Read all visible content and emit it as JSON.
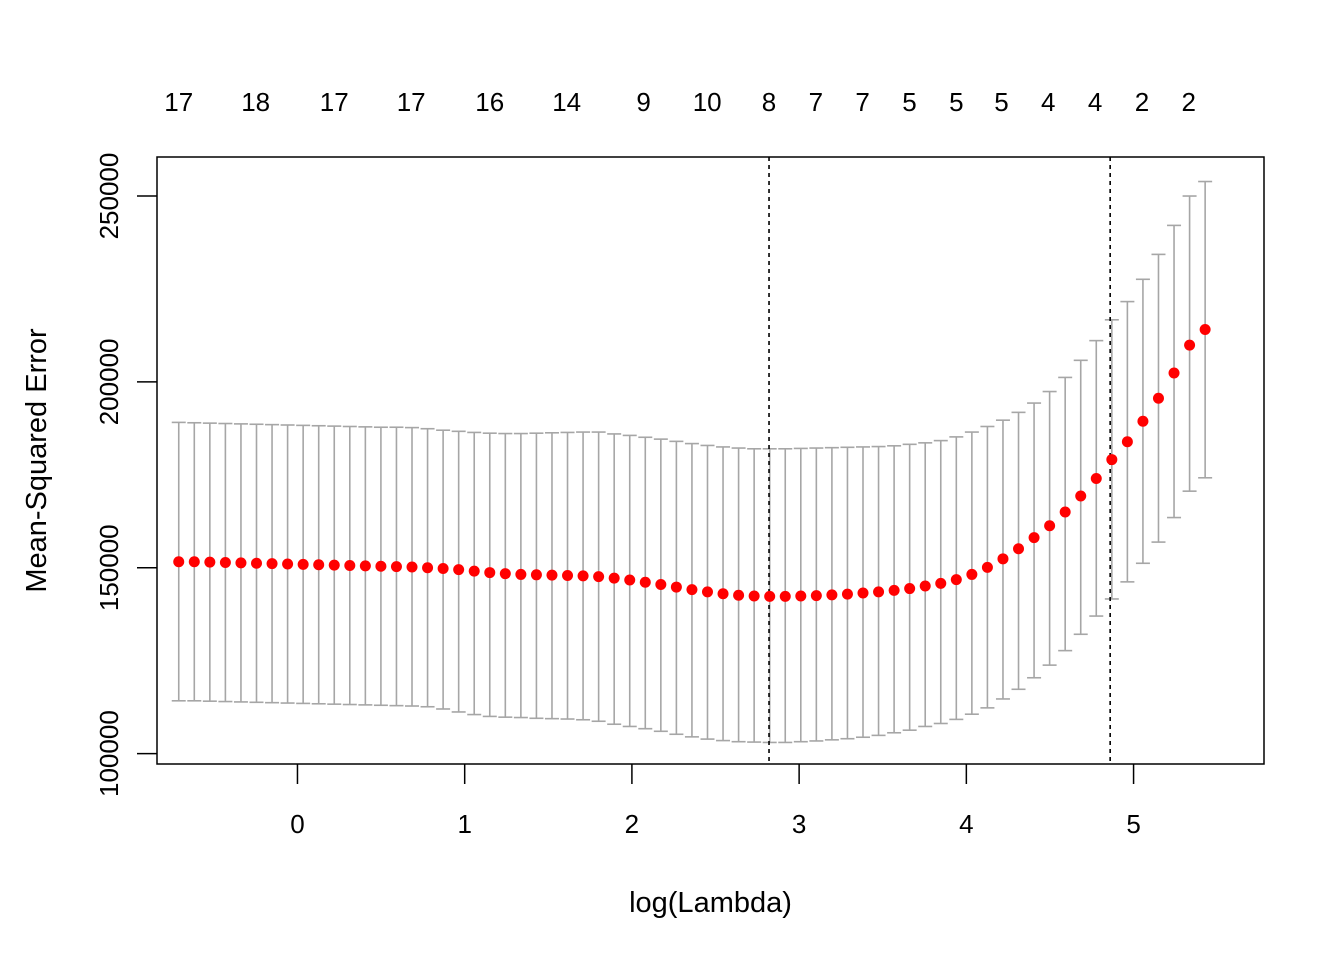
{
  "chart_data": {
    "type": "scatter",
    "xlabel": "log(Lambda)",
    "ylabel": "Mean-Squared Error",
    "xlim": [
      -0.84,
      5.78
    ],
    "ylim": [
      97200,
      260500
    ],
    "x_ticks": [
      0,
      1,
      2,
      3,
      4,
      5
    ],
    "y_ticks": [
      100000,
      150000,
      200000,
      250000
    ],
    "x_tick_labels": [
      "0",
      "1",
      "2",
      "3",
      "4",
      "5"
    ],
    "y_tick_labels": [
      "100000",
      "150000",
      "200000",
      "250000"
    ],
    "top_labels": [
      {
        "x": -0.71,
        "label": "17"
      },
      {
        "x": -0.25,
        "label": "18"
      },
      {
        "x": 0.22,
        "label": "17"
      },
      {
        "x": 0.68,
        "label": "17"
      },
      {
        "x": 1.15,
        "label": "16"
      },
      {
        "x": 1.61,
        "label": "14"
      },
      {
        "x": 2.07,
        "label": "9"
      },
      {
        "x": 2.45,
        "label": "10"
      },
      {
        "x": 2.82,
        "label": "8"
      },
      {
        "x": 3.1,
        "label": "7"
      },
      {
        "x": 3.38,
        "label": "7"
      },
      {
        "x": 3.66,
        "label": "5"
      },
      {
        "x": 3.94,
        "label": "5"
      },
      {
        "x": 4.21,
        "label": "5"
      },
      {
        "x": 4.49,
        "label": "4"
      },
      {
        "x": 4.77,
        "label": "4"
      },
      {
        "x": 5.05,
        "label": "2"
      },
      {
        "x": 5.33,
        "label": "2"
      }
    ],
    "vlines": [
      2.82,
      4.86
    ],
    "x": [
      -0.71,
      -0.617,
      -0.524,
      -0.431,
      -0.338,
      -0.245,
      -0.152,
      -0.059,
      0.034,
      0.127,
      0.22,
      0.313,
      0.406,
      0.499,
      0.592,
      0.685,
      0.778,
      0.871,
      0.964,
      1.057,
      1.15,
      1.243,
      1.336,
      1.429,
      1.522,
      1.615,
      1.708,
      1.801,
      1.894,
      1.987,
      2.08,
      2.173,
      2.266,
      2.359,
      2.452,
      2.545,
      2.638,
      2.731,
      2.824,
      2.917,
      3.01,
      3.103,
      3.196,
      3.289,
      3.382,
      3.475,
      3.568,
      3.661,
      3.754,
      3.847,
      3.94,
      4.033,
      4.126,
      4.219,
      4.312,
      4.405,
      4.498,
      4.591,
      4.684,
      4.777,
      4.87,
      4.963,
      5.056,
      5.149,
      5.242,
      5.335,
      5.428
    ],
    "series": [
      {
        "values": [
          151600,
          151600,
          151500,
          151400,
          151300,
          151200,
          151100,
          151000,
          150900,
          150800,
          150700,
          150600,
          150500,
          150400,
          150300,
          150200,
          150000,
          149800,
          149500,
          149100,
          148700,
          148400,
          148200,
          148100,
          148000,
          147900,
          147800,
          147600,
          147200,
          146700,
          146100,
          145500,
          144800,
          144100,
          143500,
          143000,
          142600,
          142400,
          142300,
          142300,
          142400,
          142500,
          142700,
          142900,
          143200,
          143500,
          143900,
          144400,
          145100,
          145800,
          146800,
          148200,
          150100,
          152400,
          155100,
          158100,
          161300,
          165000,
          169300,
          174000,
          179100,
          183900,
          189400,
          195600,
          202400,
          209900,
          214100
        ],
        "upper": [
          189100,
          189000,
          188900,
          188800,
          188700,
          188600,
          188500,
          188400,
          188300,
          188200,
          188100,
          188000,
          187900,
          187800,
          187800,
          187700,
          187400,
          187000,
          186700,
          186400,
          186200,
          186100,
          186100,
          186200,
          186300,
          186400,
          186500,
          186500,
          186000,
          185600,
          185100,
          184600,
          184000,
          183400,
          182900,
          182500,
          182200,
          182000,
          182000,
          182000,
          182100,
          182200,
          182300,
          182400,
          182500,
          182600,
          182800,
          183200,
          183600,
          184200,
          185200,
          186500,
          188000,
          189700,
          191800,
          194300,
          197400,
          201200,
          205800,
          211100,
          216700,
          221600,
          227600,
          234300,
          242100,
          250000,
          253900
        ],
        "lower": [
          114200,
          114200,
          114100,
          114000,
          113900,
          113800,
          113700,
          113600,
          113500,
          113400,
          113300,
          113200,
          113100,
          113000,
          112900,
          112800,
          112600,
          112000,
          111200,
          110500,
          110000,
          109800,
          109700,
          109500,
          109400,
          109300,
          109100,
          108700,
          107900,
          107300,
          106700,
          106000,
          105200,
          104500,
          103900,
          103500,
          103200,
          103100,
          103000,
          103000,
          103200,
          103400,
          103700,
          104000,
          104400,
          104900,
          105600,
          106300,
          107300,
          108100,
          109200,
          110600,
          112300,
          114700,
          117300,
          120400,
          123800,
          127700,
          132100,
          137000,
          141600,
          146200,
          151200,
          156900,
          163500,
          170600,
          174200
        ]
      }
    ]
  }
}
